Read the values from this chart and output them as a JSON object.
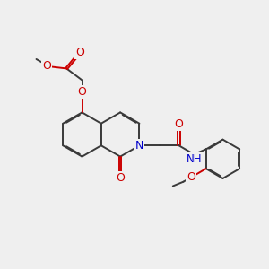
{
  "bg_color": "#efefef",
  "bond_color": "#3a3a3a",
  "oxygen_color": "#cc0000",
  "nitrogen_color": "#0000cc",
  "line_width": 1.4,
  "dbo": 0.035,
  "fig_w": 3.0,
  "fig_h": 3.0,
  "dpi": 100,
  "xlim": [
    0,
    10
  ],
  "ylim": [
    0,
    10
  ]
}
